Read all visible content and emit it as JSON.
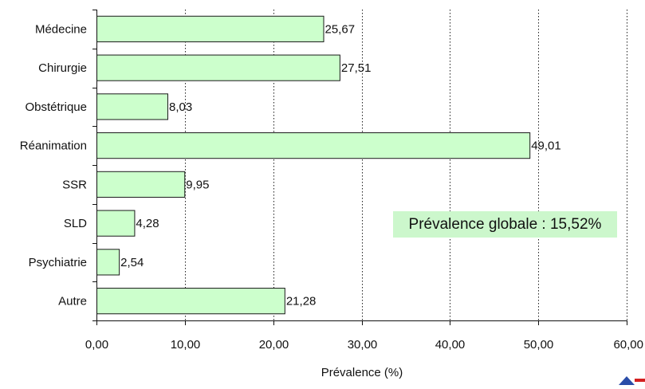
{
  "chart_data": {
    "type": "bar",
    "orientation": "horizontal",
    "categories": [
      "Médecine",
      "Chirurgie",
      "Obstétrique",
      "Réanimation",
      "SSR",
      "SLD",
      "Psychiatrie",
      "Autre"
    ],
    "values": [
      25.67,
      27.51,
      8.03,
      49.01,
      9.95,
      4.28,
      2.54,
      21.28
    ],
    "value_labels": [
      "25,67",
      "27,51",
      "8,03",
      "49,01",
      "9,95",
      "4,28",
      "2,54",
      "21,28"
    ],
    "xlabel": "Prévalence (%)",
    "xlim": [
      0,
      60
    ],
    "xticks": [
      0,
      10,
      20,
      30,
      40,
      50,
      60
    ],
    "xtick_labels": [
      "0,00",
      "10,00",
      "20,00",
      "30,00",
      "40,00",
      "50,00",
      "60,00"
    ],
    "grid": "vertical dotted",
    "bar_color": "#ccffcc",
    "bar_edge_color": "#1a1a1a",
    "annotation": "Prévalence globale : 15,52%",
    "annotation_color": "#ccf7cc"
  },
  "logo": {
    "colors": [
      "#2a4da8",
      "#d32020"
    ]
  }
}
